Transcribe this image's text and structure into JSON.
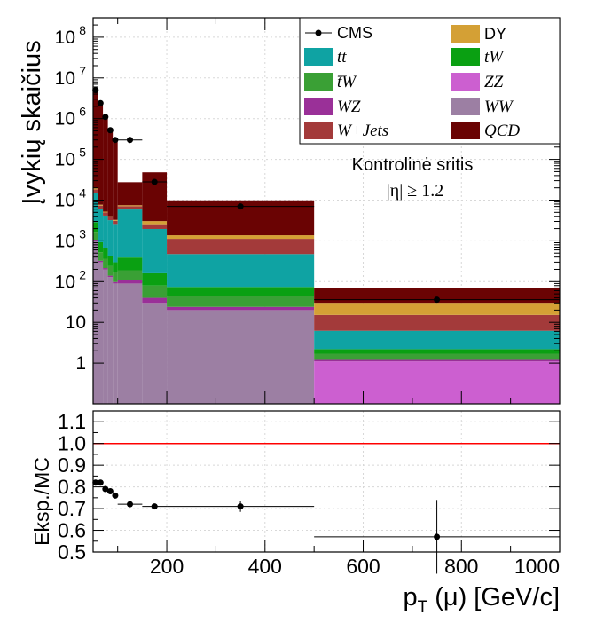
{
  "chart_data": [
    {
      "type": "bar",
      "subtype": "stacked-histogram-log",
      "ylabel": "Įvykių skaičius",
      "ylog": true,
      "ylim": [
        0.1,
        300000000
      ],
      "xlim": [
        50,
        1000
      ],
      "yticks": [
        {
          "value": 1,
          "label": "1"
        },
        {
          "value": 10,
          "label": "10"
        },
        {
          "value": 100,
          "label": "10",
          "exp": "2"
        },
        {
          "value": 1000,
          "label": "10",
          "exp": "3"
        },
        {
          "value": 10000,
          "label": "10",
          "exp": "4"
        },
        {
          "value": 100000,
          "label": "10",
          "exp": "5"
        },
        {
          "value": 1000000,
          "label": "10",
          "exp": "6"
        },
        {
          "value": 10000000,
          "label": "10",
          "exp": "7"
        },
        {
          "value": 100000000,
          "label": "10",
          "exp": "8"
        }
      ],
      "grid": true,
      "legend_position": "top-right",
      "annotation_lines": [
        "Kontrolinė sritis",
        "|η| ≥ 1.2"
      ],
      "bins": [
        50,
        60,
        70,
        80,
        90,
        100,
        150,
        200,
        500,
        1000
      ],
      "series": [
        {
          "name": "WW",
          "color": "#9c7fa3",
          "values": [
            1000,
            300,
            200,
            130,
            90,
            90,
            30,
            20,
            0,
            0
          ]
        },
        {
          "name": "ZZ",
          "color": "#cc5fd0",
          "values": [
            0,
            0,
            0,
            0,
            0,
            0,
            0,
            0,
            1.1,
            0
          ]
        },
        {
          "name": "WZ",
          "color": "#9a3098",
          "values": [
            70,
            25,
            15,
            10,
            8,
            20,
            10,
            4,
            0.1,
            0
          ]
        },
        {
          "name": "t̄W",
          "color": "#3aa035",
          "values": [
            600,
            200,
            150,
            100,
            70,
            80,
            40,
            20,
            0.5,
            0
          ]
        },
        {
          "name": "tW",
          "color": "#0aa012",
          "values": [
            1200,
            400,
            300,
            180,
            130,
            200,
            80,
            30,
            0.5,
            0
          ]
        },
        {
          "name": "tt",
          "color": "#0fa3a3",
          "values": [
            12000,
            5000,
            3500,
            2800,
            2300,
            5500,
            1800,
            400,
            4,
            0
          ]
        },
        {
          "name": "W+Jets",
          "color": "#a33a3a",
          "values": [
            3500,
            1400,
            800,
            600,
            500,
            1200,
            600,
            650,
            9,
            0
          ]
        },
        {
          "name": "DY",
          "color": "#d4a035",
          "values": [
            1200,
            400,
            250,
            200,
            180,
            400,
            500,
            250,
            15,
            0
          ]
        },
        {
          "name": "QCD",
          "color": "#6a0303",
          "values": [
            5000000,
            2500000,
            1000000,
            500000,
            300000,
            20000,
            45000,
            8500,
            38,
            0
          ]
        }
      ],
      "data": {
        "name": "CMS",
        "x": [
          55,
          65,
          75,
          85,
          95,
          125,
          175,
          350,
          750
        ],
        "y": [
          5000000,
          2400000,
          1100000,
          520000,
          300000,
          300000,
          28000,
          7000,
          36
        ]
      }
    },
    {
      "type": "scatter",
      "subtype": "ratio",
      "ylabel": "Eksp./MC",
      "xlabel": "p_T (μ) [GeV/c]",
      "xlabel_main": "p",
      "xlabel_sub": "T",
      "xlabel_rest": "(μ) [GeV/c]",
      "xlim": [
        50,
        1000
      ],
      "ylim": [
        0.5,
        1.15
      ],
      "reference_line": 1.0,
      "xticks": [
        {
          "value": 200,
          "label": "200"
        },
        {
          "value": 400,
          "label": "400"
        },
        {
          "value": 600,
          "label": "600"
        },
        {
          "value": 800,
          "label": "800"
        },
        {
          "value": 1000,
          "label": "1000"
        }
      ],
      "yticks": [
        {
          "value": 0.5,
          "label": "0.5"
        },
        {
          "value": 0.6,
          "label": "0.6"
        },
        {
          "value": 0.7,
          "label": "0.7"
        },
        {
          "value": 0.8,
          "label": "0.8"
        },
        {
          "value": 0.9,
          "label": "0.9"
        },
        {
          "value": 1.0,
          "label": "1.0"
        },
        {
          "value": 1.1,
          "label": "1.1"
        }
      ],
      "points": [
        {
          "x": 55,
          "xlo": 50,
          "xhi": 60,
          "y": 0.82,
          "err": 0.003
        },
        {
          "x": 65,
          "xlo": 60,
          "xhi": 70,
          "y": 0.82,
          "err": 0.003
        },
        {
          "x": 75,
          "xlo": 70,
          "xhi": 80,
          "y": 0.79,
          "err": 0.004
        },
        {
          "x": 85,
          "xlo": 80,
          "xhi": 90,
          "y": 0.78,
          "err": 0.005
        },
        {
          "x": 95,
          "xlo": 90,
          "xhi": 100,
          "y": 0.76,
          "err": 0.006
        },
        {
          "x": 125,
          "xlo": 100,
          "xhi": 150,
          "y": 0.72,
          "err": 0.006
        },
        {
          "x": 175,
          "xlo": 150,
          "xhi": 200,
          "y": 0.71,
          "err": 0.008
        },
        {
          "x": 350,
          "xlo": 200,
          "xhi": 500,
          "y": 0.71,
          "err": 0.025
        },
        {
          "x": 750,
          "xlo": 500,
          "xhi": 1000,
          "y": 0.57,
          "err": 0.17
        }
      ]
    }
  ]
}
